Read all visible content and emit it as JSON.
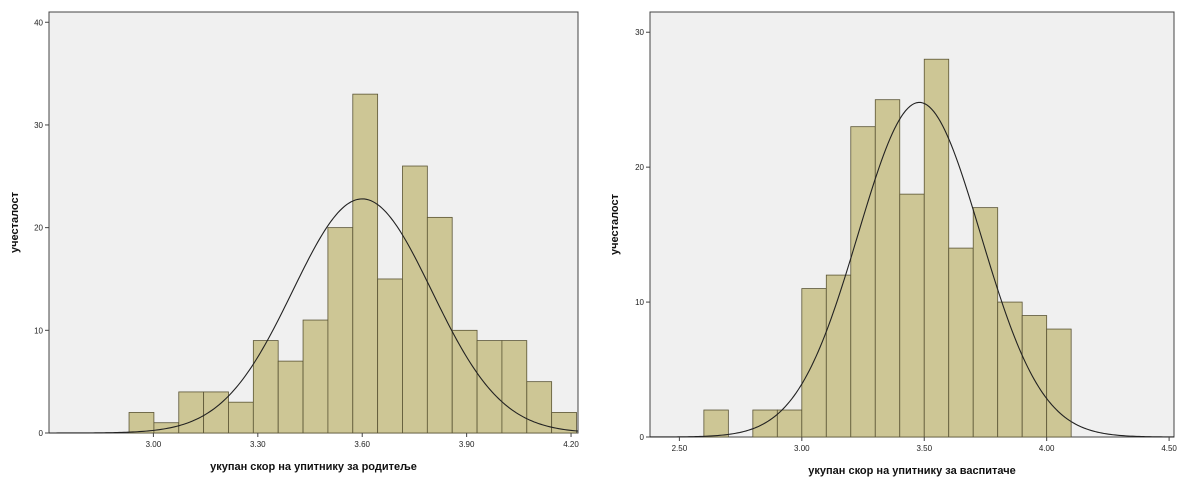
{
  "chart_data": [
    {
      "type": "bar",
      "subtype": "histogram",
      "xlabel": "укупан скор на упитнику за родитеље",
      "ylabel": "учесталост",
      "xlim": [
        2.7,
        4.22
      ],
      "ylim": [
        0,
        41
      ],
      "xticks": [
        3.0,
        3.3,
        3.6,
        3.9,
        4.2
      ],
      "xtick_labels": [
        "3.00",
        "3.30",
        "3.60",
        "3.90",
        "4.20"
      ],
      "yticks": [
        0,
        10,
        20,
        30,
        40
      ],
      "ytick_labels": [
        "0",
        "10",
        "20",
        "30",
        "40"
      ],
      "bin_width": 0.0714,
      "bins": [
        {
          "x0": 2.93,
          "count": 2
        },
        {
          "x0": 3.0014,
          "count": 1
        },
        {
          "x0": 3.0729,
          "count": 4
        },
        {
          "x0": 3.1443,
          "count": 4
        },
        {
          "x0": 3.2157,
          "count": 3
        },
        {
          "x0": 3.2871,
          "count": 9
        },
        {
          "x0": 3.3586,
          "count": 7
        },
        {
          "x0": 3.43,
          "count": 11
        },
        {
          "x0": 3.5014,
          "count": 20
        },
        {
          "x0": 3.5729,
          "count": 33
        },
        {
          "x0": 3.6443,
          "count": 15
        },
        {
          "x0": 3.7157,
          "count": 26
        },
        {
          "x0": 3.7871,
          "count": 21
        },
        {
          "x0": 3.8586,
          "count": 10
        },
        {
          "x0": 3.93,
          "count": 9
        },
        {
          "x0": 4.0014,
          "count": 9
        },
        {
          "x0": 4.0729,
          "count": 5
        },
        {
          "x0": 4.1443,
          "count": 2
        }
      ],
      "normal_curve": {
        "mean": 3.6,
        "sd": 0.2,
        "peak": 22.8
      },
      "grid": false,
      "colors": {
        "bar_fill": "#cdc695",
        "bar_stroke": "#5a5434",
        "plot_bg": "#f0f0f0",
        "curve": "#222222"
      }
    },
    {
      "type": "bar",
      "subtype": "histogram",
      "xlabel": "укупан скор на упитнику за васпитаче",
      "ylabel": "учесталост",
      "xlim": [
        2.38,
        4.52
      ],
      "ylim": [
        0,
        31.5
      ],
      "xticks": [
        2.5,
        3.0,
        3.5,
        4.0,
        4.5
      ],
      "xtick_labels": [
        "2.50",
        "3.00",
        "3.50",
        "4.00",
        "4.50"
      ],
      "yticks": [
        0,
        10,
        20,
        30
      ],
      "ytick_labels": [
        "0",
        "10",
        "20",
        "30"
      ],
      "bin_width": 0.1,
      "bins": [
        {
          "x0": 2.6,
          "count": 2
        },
        {
          "x0": 2.7,
          "count": 0
        },
        {
          "x0": 2.8,
          "count": 2
        },
        {
          "x0": 2.9,
          "count": 2
        },
        {
          "x0": 3.0,
          "count": 11
        },
        {
          "x0": 3.1,
          "count": 12
        },
        {
          "x0": 3.2,
          "count": 23
        },
        {
          "x0": 3.3,
          "count": 25
        },
        {
          "x0": 3.4,
          "count": 18
        },
        {
          "x0": 3.5,
          "count": 28
        },
        {
          "x0": 3.6,
          "count": 14
        },
        {
          "x0": 3.7,
          "count": 17
        },
        {
          "x0": 3.8,
          "count": 10
        },
        {
          "x0": 3.9,
          "count": 9
        },
        {
          "x0": 4.0,
          "count": 8
        }
      ],
      "normal_curve": {
        "mean": 3.48,
        "sd": 0.25,
        "peak": 24.8
      },
      "grid": false,
      "colors": {
        "bar_fill": "#cdc695",
        "bar_stroke": "#5a5434",
        "plot_bg": "#f0f0f0",
        "curve": "#222222"
      }
    }
  ]
}
